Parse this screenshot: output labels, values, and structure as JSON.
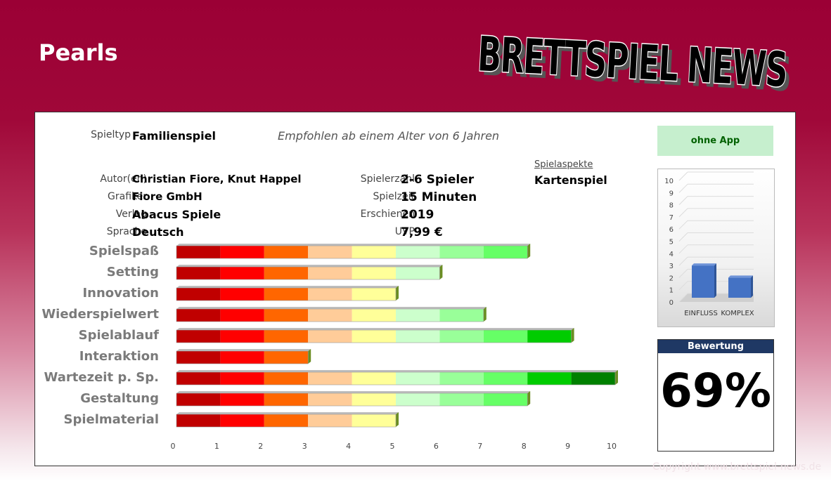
{
  "header": {
    "title": "Pearls",
    "logo_text": "BRETTSPIEL NEWS"
  },
  "info": {
    "spieltyp_label": "Spieltyp",
    "spieltyp_value": "Familienspiel",
    "age_text": "Empfohlen ab einem Alter von 6 Jahren",
    "autor_label": "Autor(en)",
    "autor_value": "Christian Fiore, Knut Happel",
    "grafiker_label": "Grafiker",
    "grafiker_value": "Fiore GmbH",
    "verlag_label": "Verlag",
    "verlag_value": "Abacus Spiele",
    "sprache_label": "Sprache",
    "sprache_value": "Deutsch",
    "spielerzahl_label": "Spielerzahl",
    "spielerzahl_value": "2-6 Spieler",
    "spielzeit_label": "Spielzeit",
    "spielzeit_value": "15 Minuten",
    "erschienen_label": "Erschienen",
    "erschienen_value": "2019",
    "uvp_label": "UVP",
    "uvp_value": "7,99 €",
    "aspekte_label": "Spielaspekte",
    "aspekte_value": "Kartenspiel"
  },
  "app_box": {
    "label": "ohne App"
  },
  "rating": {
    "label": "Bewertung",
    "value": "69%"
  },
  "copyright": "Copyright www.brettspiel-news.de",
  "segment_colors": [
    "#c00000",
    "#ff0000",
    "#ff6600",
    "#ffcc99",
    "#ffff99",
    "#ccffcc",
    "#99ff99",
    "#66ff66",
    "#00cc00",
    "#008000"
  ],
  "chart_data": [
    {
      "type": "bar",
      "orientation": "horizontal",
      "categories": [
        "Spielspaß",
        "Setting",
        "Innovation",
        "Wiederspielwert",
        "Spielablauf",
        "Interaktion",
        "Wartezeit p. Sp.",
        "Gestaltung",
        "Spielmaterial"
      ],
      "values": [
        8,
        6,
        5,
        7,
        9,
        3,
        10,
        8,
        5
      ],
      "xlim": [
        0,
        10
      ],
      "xticks": [
        "0",
        "1",
        "2",
        "3",
        "4",
        "5",
        "6",
        "7",
        "8",
        "9",
        "10"
      ]
    },
    {
      "type": "bar",
      "orientation": "vertical",
      "categories": [
        "EINFLUSS",
        "KOMPLEX"
      ],
      "values": [
        3,
        2
      ],
      "ylim": [
        0,
        10
      ],
      "yticks": [
        "0",
        "1",
        "2",
        "3",
        "4",
        "5",
        "6",
        "7",
        "8",
        "9",
        "10"
      ],
      "bar_color": "#4472c4"
    }
  ]
}
